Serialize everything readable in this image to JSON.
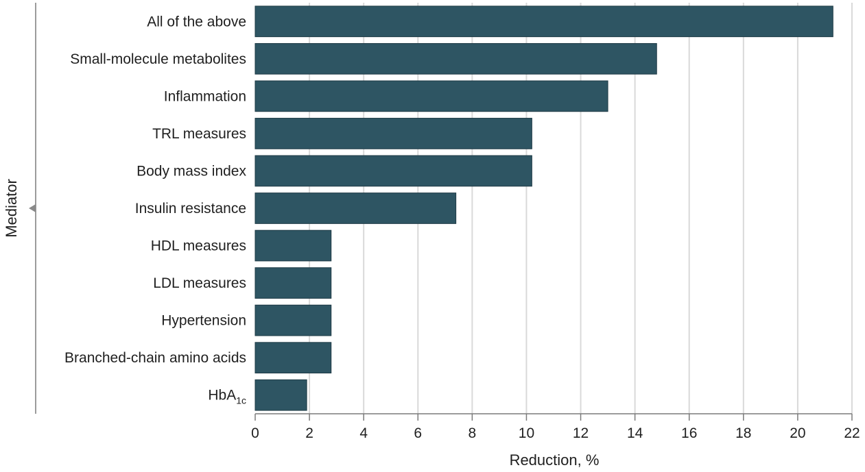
{
  "chart_data": {
    "type": "bar",
    "orientation": "horizontal",
    "categories": [
      {
        "text": "All of the above",
        "sub": ""
      },
      {
        "text": "Small-molecule metabolites",
        "sub": ""
      },
      {
        "text": "Inflammation",
        "sub": ""
      },
      {
        "text": "TRL measures",
        "sub": ""
      },
      {
        "text": "Body mass index",
        "sub": ""
      },
      {
        "text": "Insulin resistance",
        "sub": ""
      },
      {
        "text": "HDL measures",
        "sub": ""
      },
      {
        "text": "LDL measures",
        "sub": ""
      },
      {
        "text": "Hypertension",
        "sub": ""
      },
      {
        "text": "Branched-chain amino acids",
        "sub": ""
      },
      {
        "text": "HbA",
        "sub": "1c"
      }
    ],
    "values": [
      21.3,
      14.8,
      13.0,
      10.2,
      10.2,
      7.4,
      2.8,
      2.8,
      2.8,
      2.8,
      1.9
    ],
    "xlabel": "Reduction, %",
    "ylabel": "Mediator",
    "xlim": [
      0,
      22
    ],
    "xticks": [
      0,
      2,
      4,
      6,
      8,
      10,
      12,
      14,
      16,
      18,
      20,
      22
    ],
    "grid": "vertical",
    "bar_color": "#2e5563"
  }
}
